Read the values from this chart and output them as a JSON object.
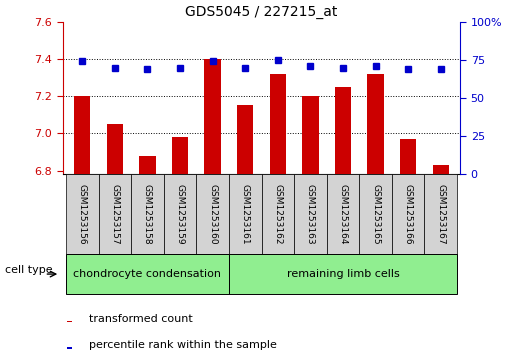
{
  "title": "GDS5045 / 227215_at",
  "samples": [
    "GSM1253156",
    "GSM1253157",
    "GSM1253158",
    "GSM1253159",
    "GSM1253160",
    "GSM1253161",
    "GSM1253162",
    "GSM1253163",
    "GSM1253164",
    "GSM1253165",
    "GSM1253166",
    "GSM1253167"
  ],
  "bar_values": [
    7.2,
    7.05,
    6.88,
    6.98,
    7.4,
    7.15,
    7.32,
    7.2,
    7.25,
    7.32,
    6.97,
    6.83
  ],
  "dot_values": [
    74,
    70,
    69,
    70,
    74,
    70,
    75,
    71,
    70,
    71,
    69,
    69
  ],
  "bar_baseline": 6.78,
  "ylim_left": [
    6.78,
    7.6
  ],
  "ylim_right": [
    0,
    100
  ],
  "yticks_left": [
    6.8,
    7.0,
    7.2,
    7.4,
    7.6
  ],
  "yticks_right": [
    0,
    25,
    50,
    75,
    100
  ],
  "bar_color": "#cc0000",
  "dot_color": "#0000cc",
  "bg_color": "#d3d3d3",
  "cell_type_color": "#90ee90",
  "cell_types": [
    "chondrocyte condensation",
    "remaining limb cells"
  ],
  "chondrocyte_count": 5,
  "remaining_count": 7,
  "legend_bar_label": "transformed count",
  "legend_dot_label": "percentile rank within the sample",
  "cell_type_label": "cell type",
  "left_axis_color": "#cc0000",
  "right_axis_color": "#0000cc",
  "title_fontsize": 10,
  "tick_fontsize": 8,
  "label_fontsize": 8,
  "sample_fontsize": 6.5
}
